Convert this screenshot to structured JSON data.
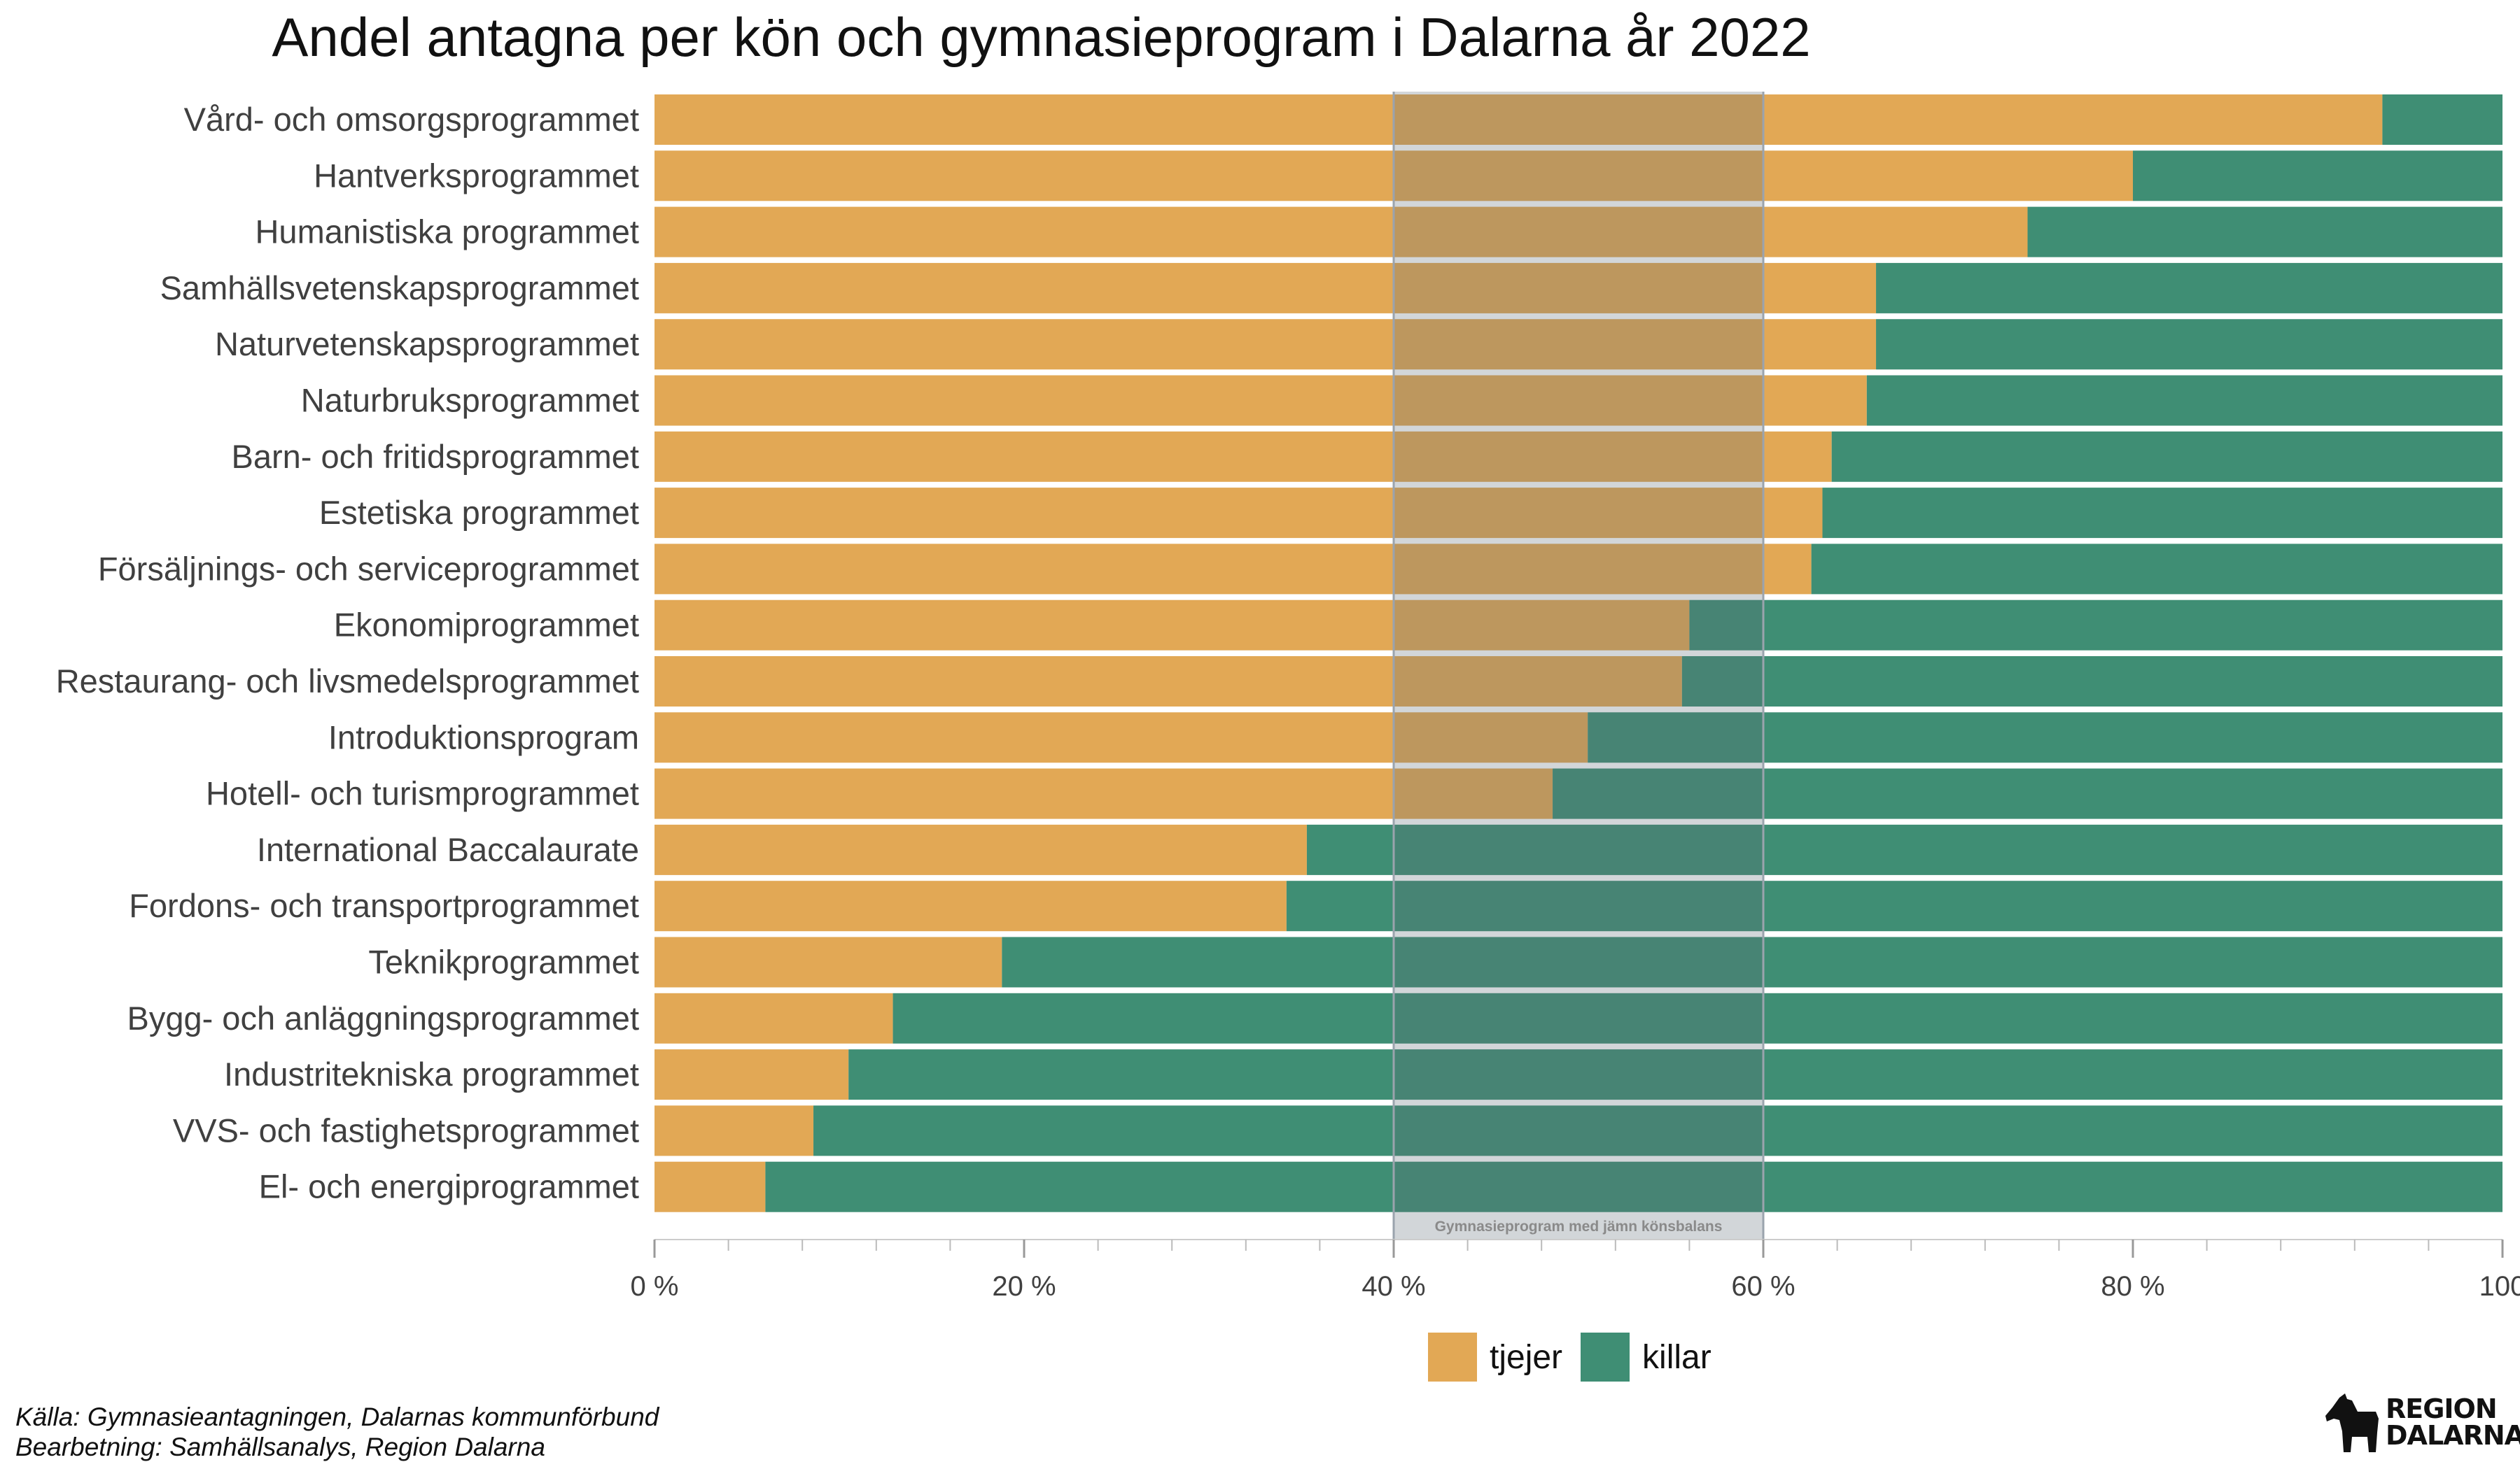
{
  "chart_data": {
    "type": "bar",
    "orientation": "horizontal",
    "stacked": true,
    "title": "Andel antagna per kön och gymnasieprogram i Dalarna år 2022",
    "categories": [
      "Vård- och omsorgsprogrammet",
      "Hantverksprogrammet",
      "Humanistiska programmet",
      "Samhällsvetenskapsprogrammet",
      "Naturvetenskapsprogrammet",
      "Naturbruksprogrammet",
      "Barn- och fritidsprogrammet",
      "Estetiska programmet",
      "Försäljnings- och serviceprogrammet",
      "Ekonomiprogrammet",
      "Restaurang- och livsmedelsprogrammet",
      "Introduktionsprogram",
      "Hotell- och turismprogrammet",
      "International Baccalaurate",
      "Fordons- och transportprogrammet",
      "Teknikprogrammet",
      "Bygg- och anläggningsprogrammet",
      "Industritekniska programmet",
      "VVS- och fastighetsprogrammet",
      "El- och energiprogrammet"
    ],
    "series": [
      {
        "name": "tjejer",
        "color": "#E2A855",
        "values": [
          93.5,
          80.0,
          74.3,
          66.1,
          66.1,
          65.6,
          63.7,
          63.2,
          62.6,
          56.0,
          55.6,
          50.5,
          48.6,
          35.3,
          34.2,
          18.8,
          12.9,
          10.5,
          8.6,
          6.0
        ]
      },
      {
        "name": "killar",
        "color": "#3F8E74",
        "values": [
          6.5,
          20.0,
          25.7,
          33.9,
          33.9,
          34.4,
          36.3,
          36.8,
          37.4,
          44.0,
          44.4,
          49.5,
          51.4,
          64.7,
          65.8,
          81.2,
          87.1,
          89.5,
          91.4,
          94.0
        ]
      }
    ],
    "xlim": [
      0,
      100
    ],
    "ticks": [
      0,
      20,
      40,
      60,
      80,
      100
    ],
    "tick_labels": [
      "0 %",
      "20 %",
      "40 %",
      "60 %",
      "80 %",
      "100"
    ],
    "minor_ticks": [
      4,
      8,
      12,
      16,
      24,
      28,
      32,
      36,
      44,
      48,
      52,
      56,
      64,
      68,
      72,
      76,
      84,
      88,
      92,
      96
    ],
    "highlight_band": {
      "range": [
        40,
        60
      ],
      "label": "Gymnasieprogram med jämn könsbalans",
      "color": "#5f6b78"
    },
    "legend_position": "bottom",
    "grid": false
  },
  "caption": {
    "source": "Källa: Gymnasieantagningen, Dalarnas kommunförbund",
    "processing": "Bearbetning: Samhällsanalys, Region Dalarna"
  },
  "logo": {
    "icon": "dala-horse-icon",
    "line1": "REGION",
    "line2": "DALARNA"
  }
}
